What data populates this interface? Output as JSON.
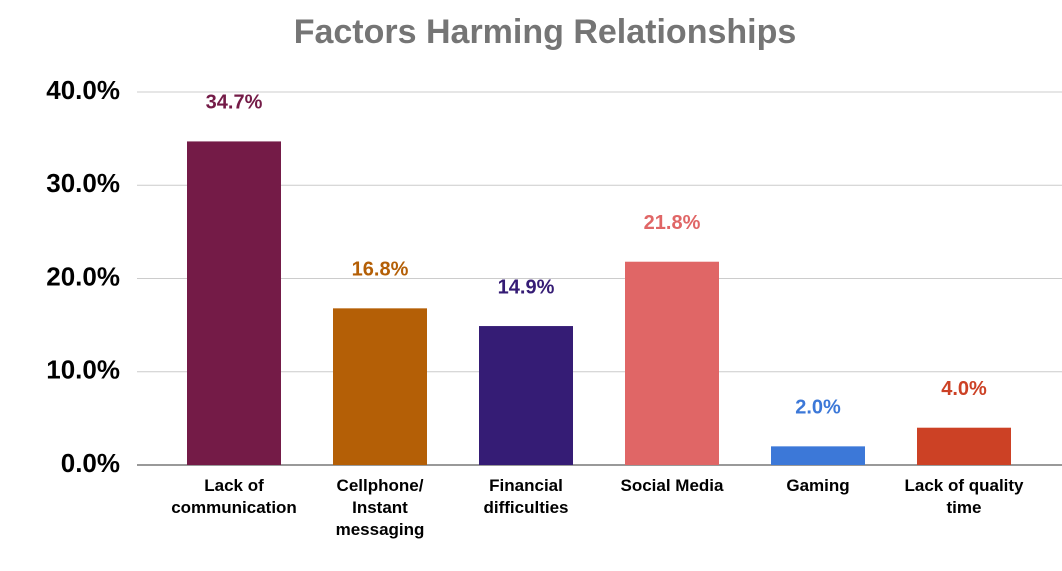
{
  "chart_data": {
    "type": "bar",
    "title": "Factors Harming Relationships",
    "categories": [
      "Lack of communication",
      "Cellphone/ Instant messaging",
      "Financial difficulties",
      "Social Media",
      "Gaming",
      "Lack of quality time"
    ],
    "values": [
      34.7,
      16.8,
      14.9,
      21.8,
      2.0,
      4.0
    ],
    "value_labels": [
      "34.7%",
      "16.8%",
      "14.9%",
      "21.8%",
      "2.0%",
      "4.0%"
    ],
    "colors": [
      "#741b47",
      "#b45f06",
      "#351c75",
      "#e06666",
      "#3c78d8",
      "#cc4125"
    ],
    "ylim": [
      0,
      40
    ],
    "yticks": [
      {
        "value": 0,
        "label": "0.0%"
      },
      {
        "value": 10,
        "label": "10.0%"
      },
      {
        "value": 20,
        "label": "20.0%"
      },
      {
        "value": 30,
        "label": "30.0%"
      },
      {
        "value": 40,
        "label": "40.0%"
      }
    ],
    "grid": true
  }
}
